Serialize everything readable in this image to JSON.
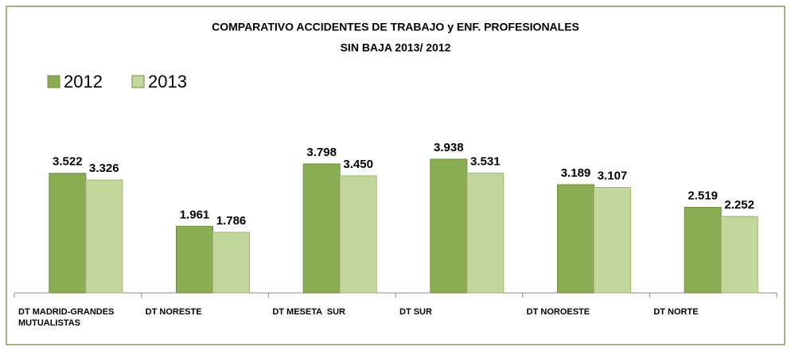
{
  "chart_data": {
    "type": "bar",
    "title": "COMPARATIVO ACCIDENTES DE TRABAJO y ENF. PROFESIONALES",
    "subtitle": "SIN BAJA 2013/ 2012",
    "categories": [
      "DT MADRID-GRANDES MUTUALISTAS",
      "DT NORESTE",
      "DT MESETA  SUR",
      "DT SUR",
      "DT NOROESTE",
      "DT NORTE"
    ],
    "series": [
      {
        "name": "2012",
        "color": "#8aac52",
        "values": [
          3522,
          1961,
          3798,
          3938,
          3189,
          2519
        ],
        "value_labels": [
          "3.522",
          "1.961",
          "3.798",
          "3.938",
          "3.189",
          "2.519"
        ]
      },
      {
        "name": "2013",
        "color": "#c3d69b",
        "values": [
          3326,
          1786,
          3450,
          3531,
          3107,
          2252
        ],
        "value_labels": [
          "3.326",
          "1.786",
          "3.450",
          "3.531",
          "3.107",
          "2.252"
        ]
      }
    ],
    "legend": "top-left"
  }
}
